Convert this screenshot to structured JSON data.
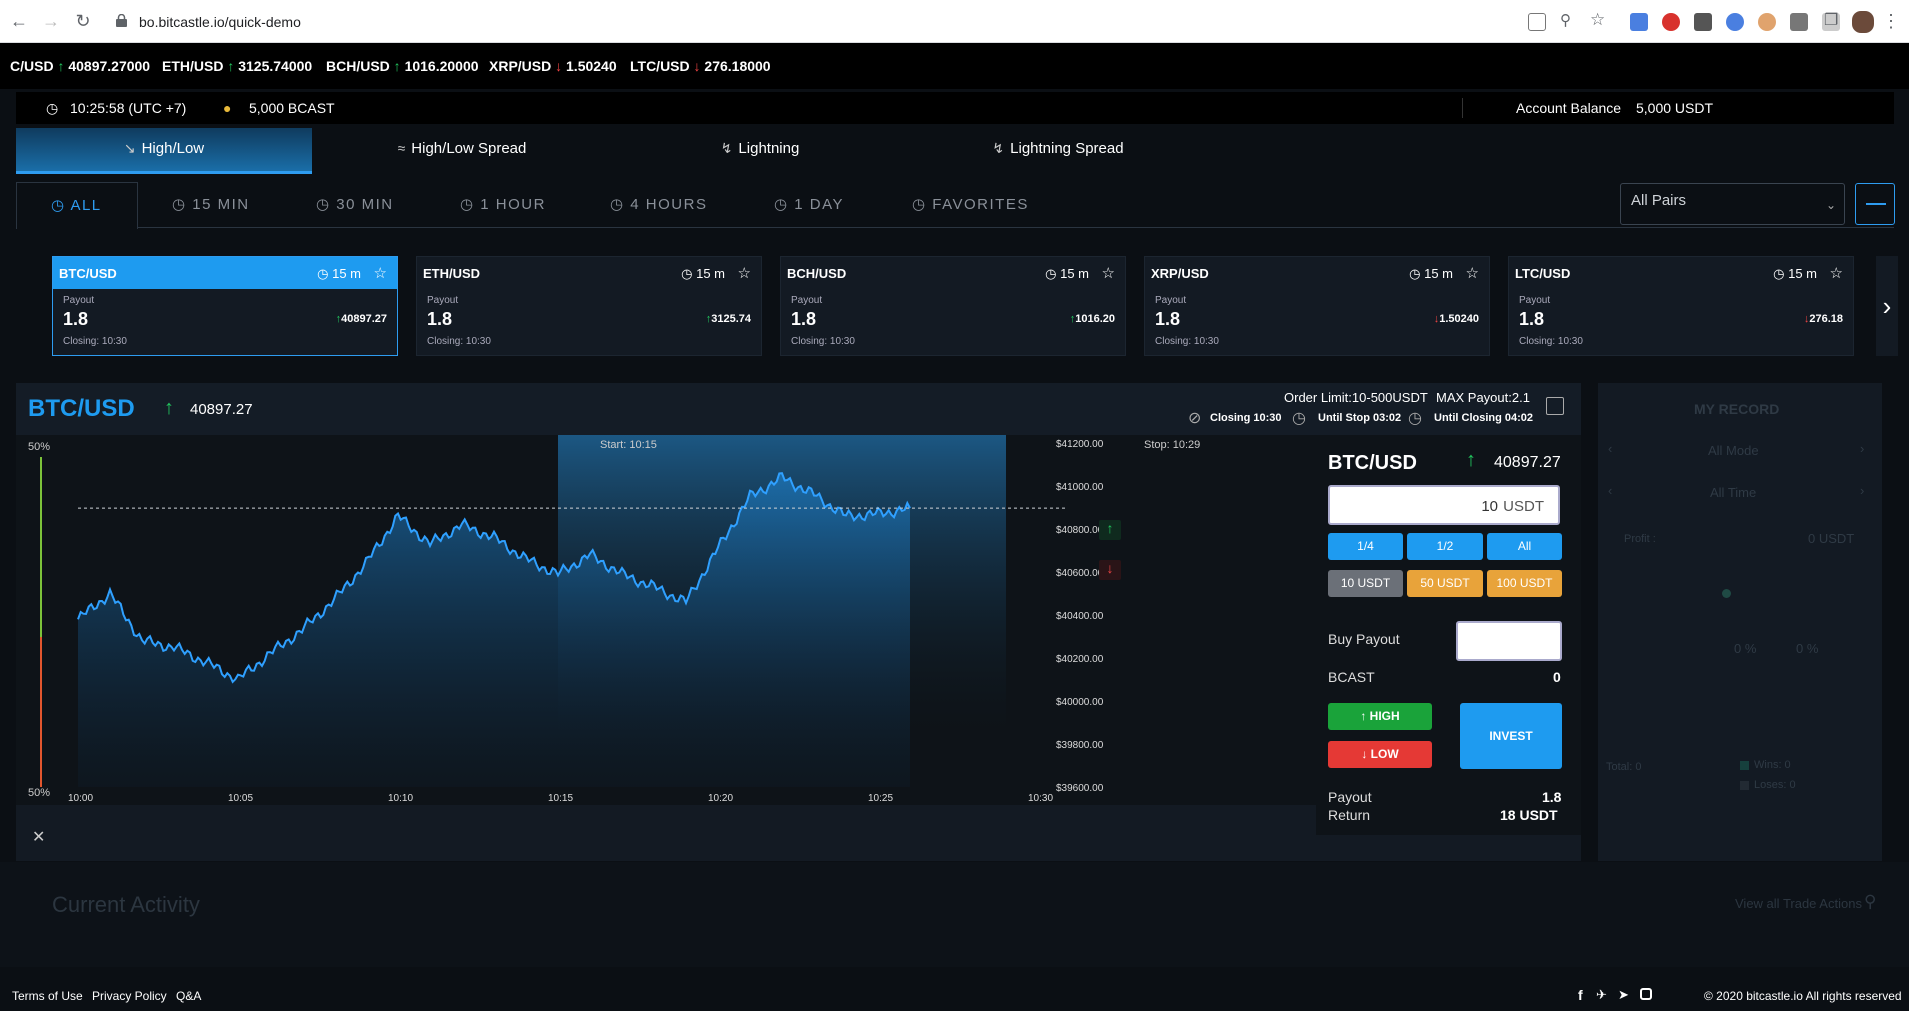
{
  "browser": {
    "url": "bo.bitcastle.io/quick-demo"
  },
  "ticker": [
    {
      "pair": "C/USD",
      "dir": "up",
      "price": "40897.27000"
    },
    {
      "pair": "ETH/USD",
      "dir": "up",
      "price": "3125.74000"
    },
    {
      "pair": "BCH/USD",
      "dir": "up",
      "price": "1016.20000"
    },
    {
      "pair": "XRP/USD",
      "dir": "down",
      "price": "1.50240"
    },
    {
      "pair": "LTC/USD",
      "dir": "down",
      "price": "276.18000"
    }
  ],
  "infobar": {
    "time": "10:25:58 (UTC +7)",
    "bcast": "5,000 BCAST",
    "balance_label": "Account Balance",
    "balance_value": "5,000 USDT"
  },
  "modes": [
    "High/Low",
    "High/Low Spread",
    "Lightning",
    "Lightning Spread"
  ],
  "filters": [
    "ALL",
    "15 MIN",
    "30 MIN",
    "1 HOUR",
    "4 HOURS",
    "1 DAY",
    "FAVORITES"
  ],
  "pair_select": {
    "value": "All Pairs"
  },
  "cards": [
    {
      "pair": "BTC/USD",
      "tm": "15 m",
      "payout_label": "Payout",
      "payout": "1.8",
      "dir": "up",
      "price": "40897.27",
      "closing": "Closing: 10:30"
    },
    {
      "pair": "ETH/USD",
      "tm": "15 m",
      "payout_label": "Payout",
      "payout": "1.8",
      "dir": "up",
      "price": "3125.74",
      "closing": "Closing: 10:30"
    },
    {
      "pair": "BCH/USD",
      "tm": "15 m",
      "payout_label": "Payout",
      "payout": "1.8",
      "dir": "up",
      "price": "1016.20",
      "closing": "Closing: 10:30"
    },
    {
      "pair": "XRP/USD",
      "tm": "15 m",
      "payout_label": "Payout",
      "payout": "1.8",
      "dir": "down",
      "price": "1.50240",
      "closing": "Closing: 10:30"
    },
    {
      "pair": "LTC/USD",
      "tm": "15 m",
      "payout_label": "Payout",
      "payout": "1.8",
      "dir": "down",
      "price": "276.18",
      "closing": "Closing: 10:30"
    }
  ],
  "chart_head": {
    "pair": "BTC/USD",
    "price": "40897.27",
    "order_limit": "Order Limit:10-500USDT",
    "max_payout": "MAX Payout:2.1",
    "closing": "Closing 10:30",
    "until_stop": "Until Stop 03:02",
    "until_closing": "Until Closing 04:02"
  },
  "chart_data": {
    "type": "area",
    "start_label": "Start: 10:15",
    "stop_label": "Stop: 10:29",
    "pct_top": "50%",
    "pct_bottom": "50%",
    "x_ticks": [
      "10:00",
      "10:05",
      "10:10",
      "10:15",
      "10:20",
      "10:25",
      "10:30"
    ],
    "y_ticks": [
      "$41200.00",
      "$41000.00",
      "$40800.00",
      "$40600.00",
      "$40400.00",
      "$40200.00",
      "$40000.00",
      "$39800.00",
      "$39600.00"
    ],
    "ylim": [
      39600,
      41200
    ],
    "current": 40897.27,
    "x": [
      "10:00",
      "10:01",
      "10:02",
      "10:03",
      "10:04",
      "10:05",
      "10:06",
      "10:07",
      "10:08",
      "10:09",
      "10:10",
      "10:11",
      "10:12",
      "10:13",
      "10:14",
      "10:15",
      "10:16",
      "10:17",
      "10:18",
      "10:19",
      "10:20",
      "10:21",
      "10:22",
      "10:23",
      "10:24",
      "10:25",
      "10:26"
    ],
    "y": [
      40380,
      40500,
      40280,
      40250,
      40180,
      40100,
      40220,
      40330,
      40470,
      40640,
      40860,
      40730,
      40820,
      40760,
      40660,
      40590,
      40680,
      40590,
      40530,
      40460,
      40710,
      40950,
      41040,
      40960,
      40860,
      40870,
      40897
    ]
  },
  "trade": {
    "pair": "BTC/USD",
    "price": "40897.27",
    "amount": "10",
    "currency": "USDT",
    "fractions": [
      "1/4",
      "1/2",
      "All"
    ],
    "presets": [
      "10 USDT",
      "50 USDT",
      "100 USDT"
    ],
    "buy_payout_label": "Buy Payout",
    "bcast_label": "BCAST",
    "bcast_value": "0",
    "high": "HIGH",
    "low": "LOW",
    "invest": "INVEST",
    "payout_label": "Payout",
    "payout_value": "1.8",
    "return_label": "Return",
    "return_value": "18 USDT"
  },
  "record": {
    "title": "MY RECORD",
    "mode": "All Mode",
    "time": "All Time",
    "profit_label": "Profit :",
    "profit_value": "0 USDT",
    "pct1": "0 %",
    "pct2": "0 %",
    "total": "Total: 0",
    "wins": "Wins: 0",
    "loses": "Loses: 0"
  },
  "activity": {
    "title": "Current Activity",
    "view_all": "View all Trade Actions"
  },
  "footer": {
    "links": [
      "Terms of Use",
      "Privacy Policy",
      "Q&A"
    ],
    "copyright": "© 2020 bitcastle.io All rights reserved"
  },
  "colors": {
    "accent": "#1e9bf0",
    "up": "#22c55e",
    "down": "#ef4444",
    "orange": "#e8a33a",
    "grey": "#6b7078"
  }
}
